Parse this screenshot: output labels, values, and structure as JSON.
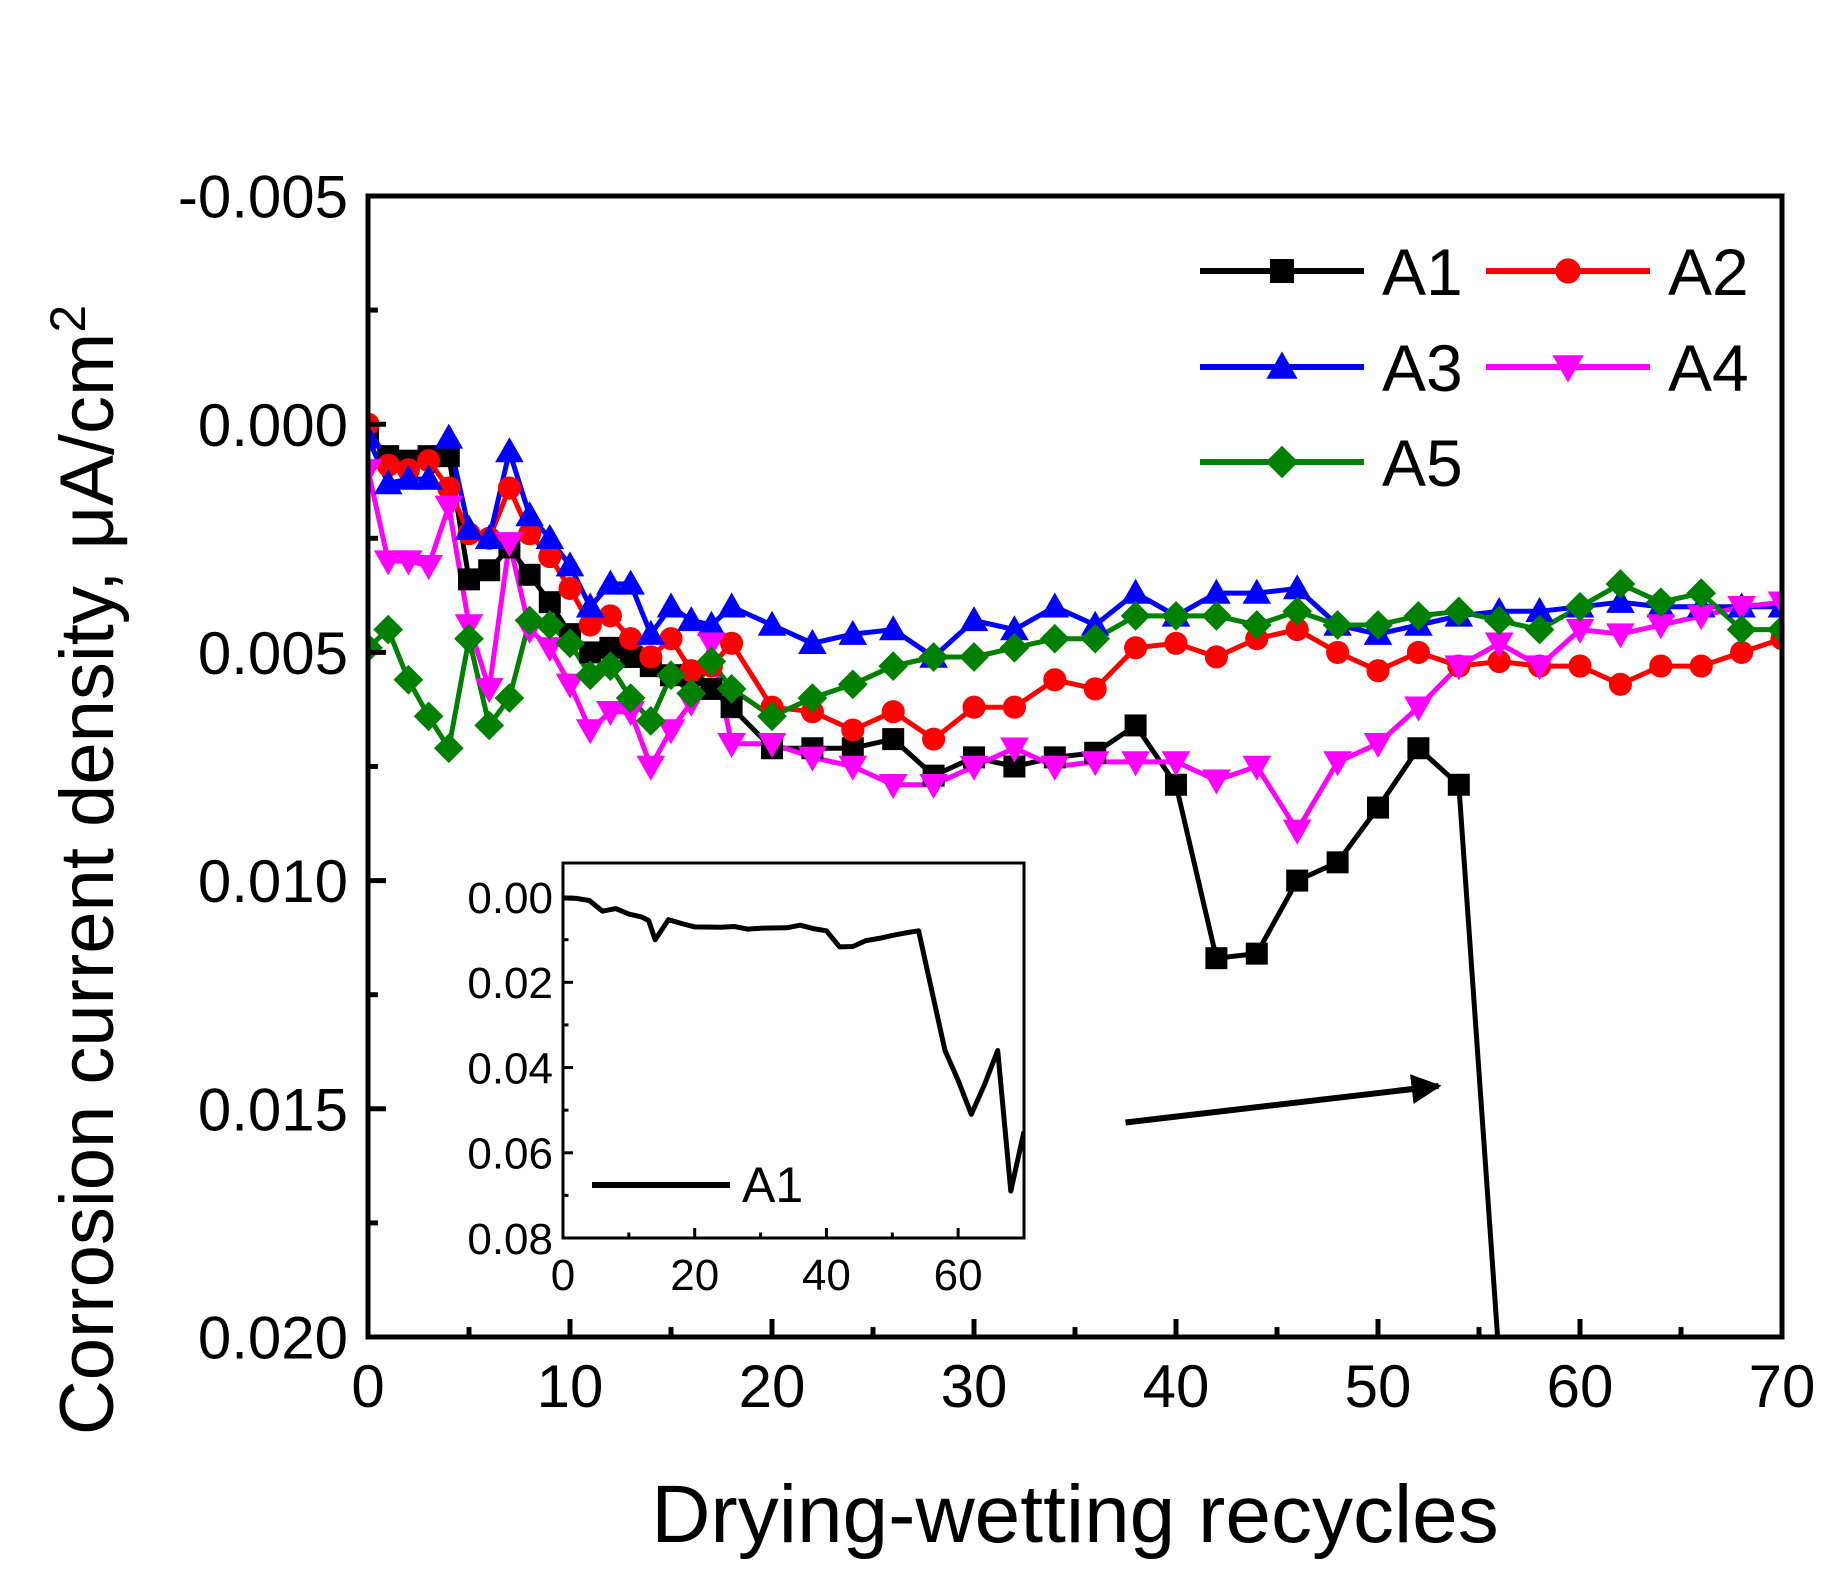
{
  "chart_data": [
    {
      "type": "line",
      "title": "",
      "xlabel": "Drying-wetting recycles",
      "ylabel": "Corrosion current density, μA/cm",
      "ylabel_superscript": "2",
      "xlim": [
        0,
        70
      ],
      "ylim": [
        -0.005,
        0.02
      ],
      "y_inverted": true,
      "x_ticks": [
        0,
        10,
        20,
        30,
        40,
        50,
        60,
        70
      ],
      "x_tick_labels": [
        "0",
        "10",
        "20",
        "30",
        "40",
        "50",
        "60",
        "70"
      ],
      "y_ticks": [
        -0.005,
        0.0,
        0.005,
        0.01,
        0.015,
        0.02
      ],
      "y_tick_labels": [
        "-0.005",
        "0.000",
        "0.005",
        "0.010",
        "0.015",
        "0.020"
      ],
      "grid": false,
      "legend_position": "top-right",
      "series": [
        {
          "name": "A1",
          "color": "#000000",
          "marker": "square",
          "x": [
            0,
            1,
            2,
            3,
            4,
            5,
            6,
            7,
            8,
            9,
            10,
            11,
            12,
            13,
            14,
            15,
            16,
            17,
            18,
            20,
            22,
            24,
            26,
            28,
            30,
            32,
            34,
            36,
            38,
            40,
            42,
            44,
            46,
            48,
            50,
            52,
            54,
            56
          ],
          "y": [
            0.0002,
            0.0007,
            0.0008,
            0.0007,
            0.0007,
            0.0034,
            0.0032,
            0.0027,
            0.0033,
            0.0039,
            0.0046,
            0.005,
            0.0049,
            0.0051,
            0.0053,
            0.0055,
            0.0055,
            0.0058,
            0.0062,
            0.0071,
            0.0071,
            0.0071,
            0.0069,
            0.0077,
            0.0073,
            0.0075,
            0.0073,
            0.0072,
            0.0066,
            0.0079,
            0.0117,
            0.0116,
            0.01,
            0.0096,
            0.0084,
            0.0071,
            0.0079,
            0.0205
          ]
        },
        {
          "name": "A2",
          "color": "#ff0000",
          "marker": "circle",
          "x": [
            0,
            1,
            2,
            3,
            4,
            5,
            6,
            7,
            8,
            9,
            10,
            11,
            12,
            13,
            14,
            15,
            16,
            17,
            18,
            20,
            22,
            24,
            26,
            28,
            30,
            32,
            34,
            36,
            38,
            40,
            42,
            44,
            46,
            48,
            50,
            52,
            54,
            56,
            58,
            60,
            62,
            64,
            66,
            68,
            70
          ],
          "y": [
            0.0,
            0.0009,
            0.001,
            0.0008,
            0.0014,
            0.0024,
            0.0025,
            0.0014,
            0.0024,
            0.0029,
            0.0036,
            0.0044,
            0.0042,
            0.0047,
            0.0051,
            0.0047,
            0.0054,
            0.0053,
            0.0048,
            0.0062,
            0.0063,
            0.0067,
            0.0063,
            0.0069,
            0.0062,
            0.0062,
            0.0056,
            0.0058,
            0.0049,
            0.0048,
            0.0051,
            0.0047,
            0.0045,
            0.005,
            0.0054,
            0.005,
            0.0053,
            0.0052,
            0.0053,
            0.0053,
            0.0057,
            0.0053,
            0.0053,
            0.005,
            0.0047
          ]
        },
        {
          "name": "A3",
          "color": "#0000ff",
          "marker": "triangle-up",
          "x": [
            0,
            1,
            2,
            3,
            4,
            5,
            6,
            7,
            8,
            9,
            10,
            11,
            12,
            13,
            14,
            15,
            16,
            17,
            18,
            20,
            22,
            24,
            26,
            28,
            30,
            32,
            34,
            36,
            38,
            40,
            42,
            44,
            46,
            48,
            50,
            52,
            54,
            56,
            58,
            60,
            62,
            64,
            66,
            68,
            70
          ],
          "y": [
            0.0003,
            0.0013,
            0.0012,
            0.0012,
            0.0003,
            0.0023,
            0.0025,
            0.0006,
            0.002,
            0.0025,
            0.0031,
            0.004,
            0.0035,
            0.0035,
            0.0046,
            0.004,
            0.0043,
            0.0044,
            0.004,
            0.0044,
            0.0048,
            0.0046,
            0.0045,
            0.0051,
            0.0043,
            0.0045,
            0.004,
            0.0044,
            0.0037,
            0.0042,
            0.0037,
            0.0037,
            0.0036,
            0.0044,
            0.0046,
            0.0044,
            0.0042,
            0.0041,
            0.0041,
            0.004,
            0.0039,
            0.004,
            0.004,
            0.004,
            0.004
          ]
        },
        {
          "name": "A4",
          "color": "#ff00ff",
          "marker": "triangle-down",
          "x": [
            0,
            1,
            2,
            3,
            4,
            5,
            6,
            7,
            8,
            9,
            10,
            11,
            12,
            13,
            14,
            15,
            16,
            17,
            18,
            20,
            22,
            24,
            26,
            28,
            30,
            32,
            34,
            36,
            38,
            40,
            42,
            44,
            46,
            48,
            50,
            52,
            54,
            56,
            58,
            60,
            62,
            64,
            66,
            68,
            70
          ],
          "y": [
            0.001,
            0.003,
            0.003,
            0.0031,
            0.0018,
            0.0044,
            0.0058,
            0.0026,
            0.0045,
            0.0049,
            0.0057,
            0.0067,
            0.0063,
            0.0063,
            0.0075,
            0.0067,
            0.0061,
            0.0048,
            0.007,
            0.007,
            0.0073,
            0.0075,
            0.0079,
            0.0079,
            0.0075,
            0.0071,
            0.0075,
            0.0074,
            0.0074,
            0.0074,
            0.0078,
            0.0075,
            0.0089,
            0.0074,
            0.007,
            0.0062,
            0.0053,
            0.0048,
            0.0053,
            0.0045,
            0.0046,
            0.0044,
            0.0042,
            0.004,
            0.0039
          ]
        },
        {
          "name": "A5",
          "color": "#008000",
          "marker": "diamond",
          "x": [
            0,
            1,
            2,
            3,
            4,
            5,
            6,
            7,
            8,
            9,
            10,
            11,
            12,
            13,
            14,
            15,
            16,
            17,
            18,
            20,
            22,
            24,
            26,
            28,
            30,
            32,
            34,
            36,
            38,
            40,
            42,
            44,
            46,
            48,
            50,
            52,
            54,
            56,
            58,
            60,
            62,
            64,
            66,
            68,
            70
          ],
          "y": [
            0.0049,
            0.0045,
            0.0056,
            0.0064,
            0.0071,
            0.0047,
            0.0066,
            0.006,
            0.0043,
            0.0044,
            0.0048,
            0.0055,
            0.0053,
            0.006,
            0.0065,
            0.0055,
            0.0059,
            0.0052,
            0.0058,
            0.0064,
            0.006,
            0.0057,
            0.0053,
            0.0051,
            0.0051,
            0.0049,
            0.0047,
            0.0047,
            0.0042,
            0.0042,
            0.0042,
            0.0044,
            0.0041,
            0.0044,
            0.0044,
            0.0042,
            0.0041,
            0.0043,
            0.0045,
            0.004,
            0.0035,
            0.0039,
            0.0037,
            0.0045,
            0.0045
          ]
        }
      ],
      "annotations": [
        {
          "type": "arrow",
          "from": [
            37.5,
            0.0153
          ],
          "to": [
            53,
            0.0145
          ]
        }
      ]
    },
    {
      "type": "line",
      "role": "inset",
      "title": "",
      "xlabel": "",
      "ylabel": "",
      "xlim": [
        0,
        70
      ],
      "ylim": [
        -0.008,
        0.08
      ],
      "y_inverted": true,
      "x_ticks": [
        0,
        20,
        40,
        60
      ],
      "x_tick_labels": [
        "0",
        "20",
        "40",
        "60"
      ],
      "y_ticks": [
        0.0,
        0.02,
        0.04,
        0.06,
        0.08
      ],
      "y_tick_labels": [
        "0.00",
        "0.02",
        "0.04",
        "0.06",
        "0.08"
      ],
      "grid": false,
      "legend_position": "bottom-left",
      "series": [
        {
          "name": "A1",
          "color": "#000000",
          "marker": "none",
          "x": [
            0,
            2,
            4,
            6,
            8,
            10,
            12,
            13,
            14,
            16,
            18,
            20,
            24,
            26,
            28,
            30,
            34,
            36,
            38,
            40,
            42,
            44,
            46,
            48,
            50,
            52,
            54,
            56,
            58,
            60,
            62,
            64,
            66,
            68,
            70
          ],
          "y": [
            0.0002,
            0.0003,
            0.0008,
            0.0033,
            0.0027,
            0.004,
            0.0047,
            0.0055,
            0.01,
            0.0053,
            0.0062,
            0.007,
            0.0071,
            0.0069,
            0.0075,
            0.0073,
            0.0072,
            0.0066,
            0.0074,
            0.0079,
            0.0117,
            0.0116,
            0.0102,
            0.0097,
            0.009,
            0.0084,
            0.0079,
            0.022,
            0.036,
            0.043,
            0.051,
            0.044,
            0.036,
            0.069,
            0.055
          ]
        }
      ]
    }
  ]
}
